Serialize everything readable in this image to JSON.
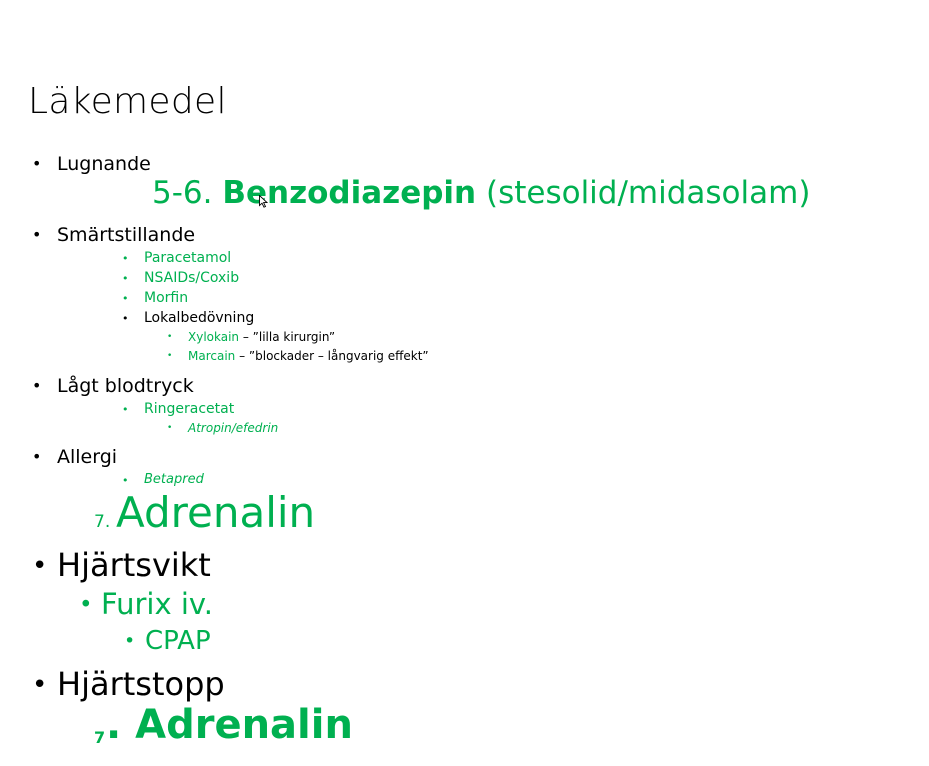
{
  "slide": {
    "title": "Läkemedel",
    "bullet_symbol": "•",
    "lugnande": {
      "label": "Lugnande",
      "drug_number": "5-6.",
      "drug_name": "Benzodiazepin",
      "drug_detail": "(stesolid/midasolam)"
    },
    "smartstillande": {
      "label": "Smärtstillande",
      "items": [
        "Paracetamol",
        "NSAIDs/Coxib",
        "Morfin",
        "Lokalbedövning"
      ],
      "lokal": [
        {
          "drug": "Xylokain",
          "note": " – ”lilla kirurgin”"
        },
        {
          "drug": "Marcain",
          "note": " – ”blockader – långvarig effekt”"
        }
      ]
    },
    "lagt_blodtryck": {
      "label": "Lågt blodtryck",
      "item": "Ringeracetat",
      "sub_item": "Atropin/efedrin"
    },
    "allergi": {
      "label": "Allergi",
      "item": "Betapred",
      "drug_number": "7.",
      "drug_name": "Adrenalin"
    },
    "hjartsvikt": {
      "label": "Hjärtsvikt",
      "item": "Furix iv.",
      "sub_item": "CPAP"
    },
    "hjartstopp": {
      "label": "Hjärtstopp",
      "drug_number": "7",
      "drug_name": ". Adrenalin"
    }
  },
  "colors": {
    "accent_green": "#00b050",
    "text": "#000000"
  }
}
